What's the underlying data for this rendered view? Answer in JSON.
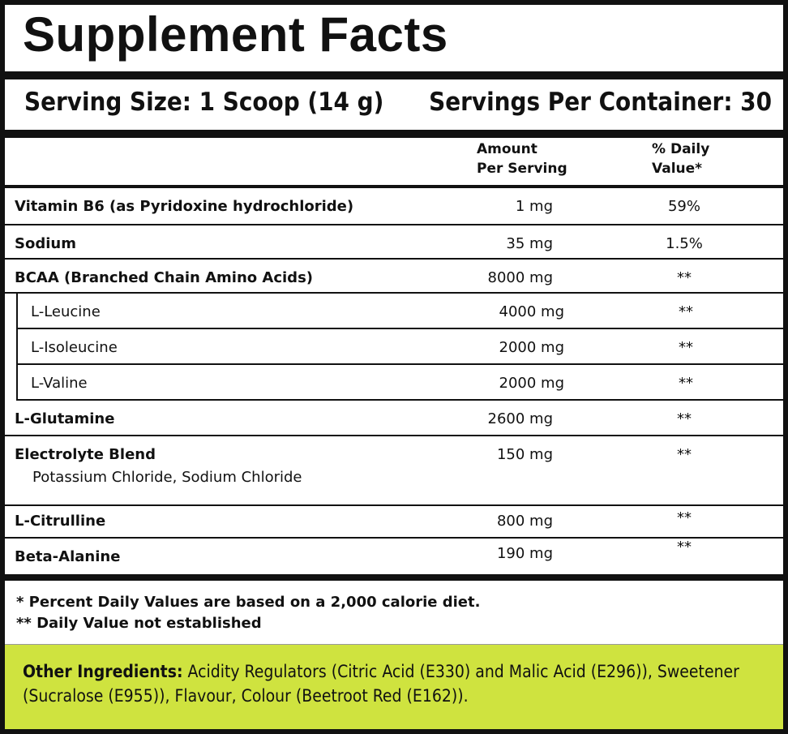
{
  "title": "Supplement Facts",
  "serving_size": "Serving Size: 1 Scoop (14 g)",
  "servings_per_container": "Servings Per Container: 30",
  "header": {
    "amount_line1": "Amount",
    "amount_line2": "Per Serving",
    "dv_line1": "% Daily",
    "dv_line2": "Value*"
  },
  "rows": [
    {
      "name": "Vitamin B6 (as Pyridoxine hydrochloride)",
      "amount": "1 mg",
      "dv": "59%"
    },
    {
      "name": "Sodium",
      "amount": "35 mg",
      "dv": "1.5%"
    },
    {
      "name": "BCAA (Branched Chain Amino Acids)",
      "amount": "8000 mg",
      "dv": "**"
    },
    {
      "name": "L-Leucine",
      "amount": "4000 mg",
      "dv": "**"
    },
    {
      "name": "L-Isoleucine",
      "amount": "2000 mg",
      "dv": "**"
    },
    {
      "name": "L-Valine",
      "amount": "2000 mg",
      "dv": "**"
    },
    {
      "name": "L-Glutamine",
      "amount": "2600 mg",
      "dv": "**"
    },
    {
      "name": "Electrolyte Blend",
      "amount": "150 mg",
      "dv": "**",
      "description": "Potassium Chloride, Sodium Chloride"
    },
    {
      "name": "L-Citrulline",
      "amount": "800 mg",
      "dv": "**"
    },
    {
      "name": "Beta-Alanine",
      "amount": "190 mg",
      "dv": "**"
    }
  ],
  "footnotes": {
    "line1": "* Percent Daily Values are based on a 2,000 calorie diet.",
    "line2": "** Daily Value not established"
  },
  "other_ingredients": {
    "label": "Other Ingredients:",
    "text": " Acidity Regulators (Citric Acid (E330) and Malic Acid (E296)), Sweetener (Sucralose (E955)), Flavour, Colour (Beetroot Red (E162))."
  },
  "colors": {
    "border": "#111111",
    "other_ingredients_bg": "#cfe33f"
  }
}
